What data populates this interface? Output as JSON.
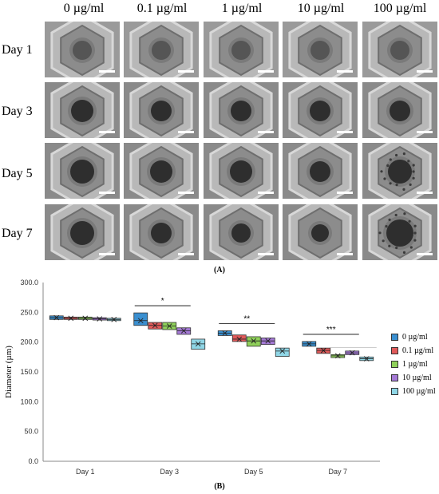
{
  "panel_a": {
    "label": "(A)",
    "columns": [
      "0 µg/ml",
      "0.1 µg/ml",
      "1 µg/ml",
      "10 µg/ml",
      "100 µg/ml"
    ],
    "rows": [
      "Day 1",
      "Day 3",
      "Day 5",
      "Day 7"
    ]
  },
  "panel_b": {
    "label": "(B)"
  },
  "chart_data": {
    "type": "box",
    "categories": [
      "Day 1",
      "Day 3",
      "Day 5",
      "Day 7"
    ],
    "ylabel": "Diameter (µm)",
    "ylim": [
      0,
      300
    ],
    "yticks": [
      "0.0",
      "50.0",
      "100.0",
      "150.0",
      "200.0",
      "250.0",
      "300.0"
    ],
    "legend_position": "right",
    "series": [
      {
        "name": "0 µg/ml",
        "color": "#3a8fd0",
        "boxes": [
          [
            238,
            241,
            244
          ],
          [
            228,
            236,
            249
          ],
          [
            211,
            215,
            219
          ],
          [
            193,
            197,
            201
          ]
        ]
      },
      {
        "name": "0.1 µg/ml",
        "color": "#e05a5a",
        "boxes": [
          [
            238,
            240,
            242
          ],
          [
            222,
            228,
            233
          ],
          [
            201,
            205,
            212
          ],
          [
            181,
            186,
            190
          ]
        ]
      },
      {
        "name": "1 µg/ml",
        "color": "#8fd05a",
        "boxes": [
          [
            238,
            240,
            242
          ],
          [
            221,
            227,
            233
          ],
          [
            193,
            202,
            209
          ],
          [
            174,
            177,
            179
          ]
        ]
      },
      {
        "name": "10 µg/ml",
        "color": "#a57ad6",
        "boxes": [
          [
            237,
            239,
            241
          ],
          [
            213,
            219,
            224
          ],
          [
            196,
            202,
            207
          ],
          [
            179,
            182,
            185
          ]
        ]
      },
      {
        "name": "100 µg/ml",
        "color": "#8fd6e6",
        "boxes": [
          [
            236,
            238,
            240
          ],
          [
            188,
            197,
            205
          ],
          [
            176,
            185,
            190
          ],
          [
            169,
            172,
            175
          ]
        ]
      }
    ],
    "annotations": [
      {
        "category": "Day 3",
        "text": "*"
      },
      {
        "category": "Day 5",
        "text": "**"
      },
      {
        "category": "Day 7",
        "text": "***"
      }
    ]
  }
}
